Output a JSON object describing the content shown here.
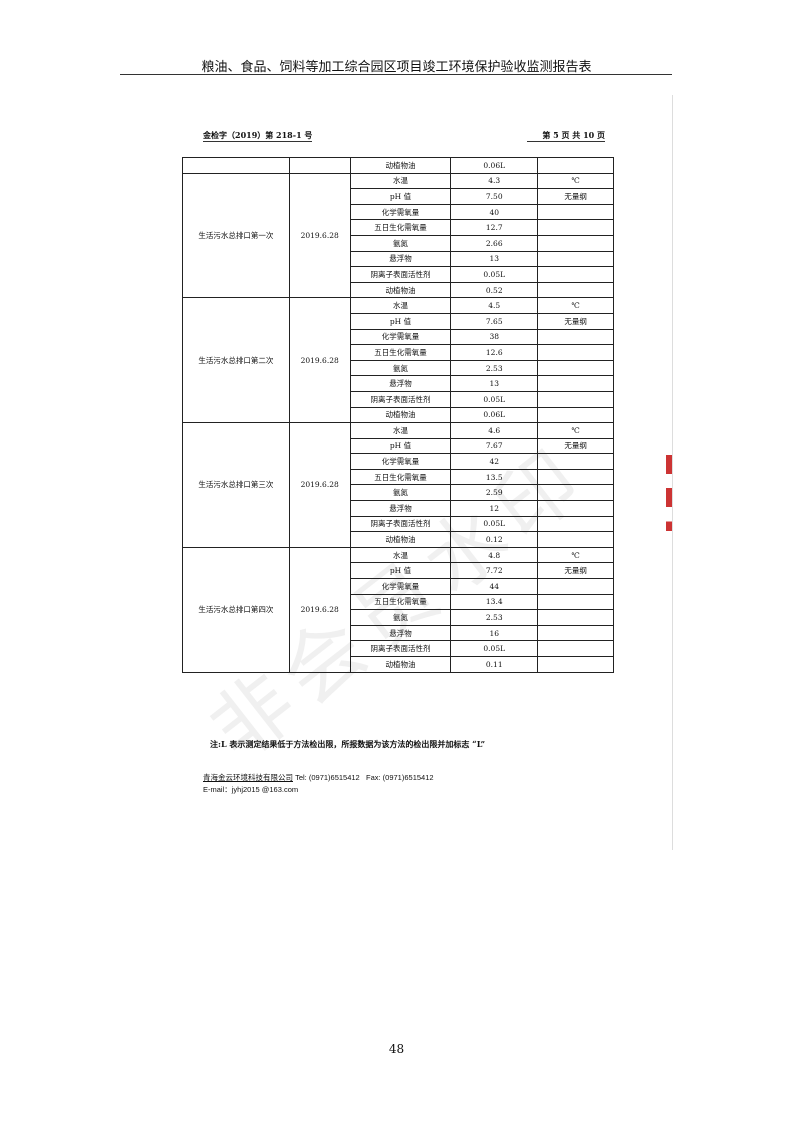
{
  "doc_title": "粮油、食品、饲料等加工综合园区项目竣工环境保护验收监测报告表",
  "report_ref": "金检字（2019）第 218-1 号",
  "page_of": "第 5 页 共 10 页",
  "table": {
    "carry_row": {
      "item": "动植物油",
      "value": "0.06L",
      "unit": ""
    },
    "groups": [
      {
        "location": "生活污水总排口第一次",
        "date": "2019.6.28",
        "rows": [
          {
            "item": "水温",
            "value": "4.3",
            "unit": "℃"
          },
          {
            "item": "pH 值",
            "value": "7.50",
            "unit": "无量纲"
          },
          {
            "item": "化学需氧量",
            "value": "40",
            "unit": ""
          },
          {
            "item": "五日生化需氧量",
            "value": "12.7",
            "unit": ""
          },
          {
            "item": "氨氮",
            "value": "2.66",
            "unit": ""
          },
          {
            "item": "悬浮物",
            "value": "13",
            "unit": ""
          },
          {
            "item": "阴离子表面活性剂",
            "value": "0.05L",
            "unit": ""
          },
          {
            "item": "动植物油",
            "value": "0.52",
            "unit": ""
          }
        ]
      },
      {
        "location": "生活污水总排口第二次",
        "date": "2019.6.28",
        "rows": [
          {
            "item": "水温",
            "value": "4.5",
            "unit": "℃"
          },
          {
            "item": "pH 值",
            "value": "7.65",
            "unit": "无量纲"
          },
          {
            "item": "化学需氧量",
            "value": "38",
            "unit": ""
          },
          {
            "item": "五日生化需氧量",
            "value": "12.6",
            "unit": ""
          },
          {
            "item": "氨氮",
            "value": "2.53",
            "unit": ""
          },
          {
            "item": "悬浮物",
            "value": "13",
            "unit": ""
          },
          {
            "item": "阴离子表面活性剂",
            "value": "0.05L",
            "unit": ""
          },
          {
            "item": "动植物油",
            "value": "0.06L",
            "unit": ""
          }
        ]
      },
      {
        "location": "生活污水总排口第三次",
        "date": "2019.6.28",
        "rows": [
          {
            "item": "水温",
            "value": "4.6",
            "unit": "℃"
          },
          {
            "item": "pH 值",
            "value": "7.67",
            "unit": "无量纲"
          },
          {
            "item": "化学需氧量",
            "value": "42",
            "unit": ""
          },
          {
            "item": "五日生化需氧量",
            "value": "13.5",
            "unit": ""
          },
          {
            "item": "氨氮",
            "value": "2.59",
            "unit": ""
          },
          {
            "item": "悬浮物",
            "value": "12",
            "unit": ""
          },
          {
            "item": "阴离子表面活性剂",
            "value": "0.05L",
            "unit": ""
          },
          {
            "item": "动植物油",
            "value": "0.12",
            "unit": ""
          }
        ]
      },
      {
        "location": "生活污水总排口第四次",
        "date": "2019.6.28",
        "rows": [
          {
            "item": "水温",
            "value": "4.8",
            "unit": "℃"
          },
          {
            "item": "pH 值",
            "value": "7.72",
            "unit": "无量纲"
          },
          {
            "item": "化学需氧量",
            "value": "44",
            "unit": ""
          },
          {
            "item": "五日生化需氧量",
            "value": "13.4",
            "unit": ""
          },
          {
            "item": "氨氮",
            "value": "2.53",
            "unit": ""
          },
          {
            "item": "悬浮物",
            "value": "16",
            "unit": ""
          },
          {
            "item": "阴离子表面活性剂",
            "value": "0.05L",
            "unit": ""
          },
          {
            "item": "动植物油",
            "value": "0.11",
            "unit": ""
          }
        ]
      }
    ]
  },
  "note": "注:L 表示测定结果低于方法检出限，所报数据为该方法的检出限并加标志 “L”",
  "contact": {
    "company": "青海金云环境科技有限公司",
    "tel": "Tel:  (0971)6515412",
    "fax": "Fax:  (0971)6515412",
    "email": "E-mail：jyhj2015 @163.com"
  },
  "watermark": "非会员水印",
  "page_number": "48"
}
